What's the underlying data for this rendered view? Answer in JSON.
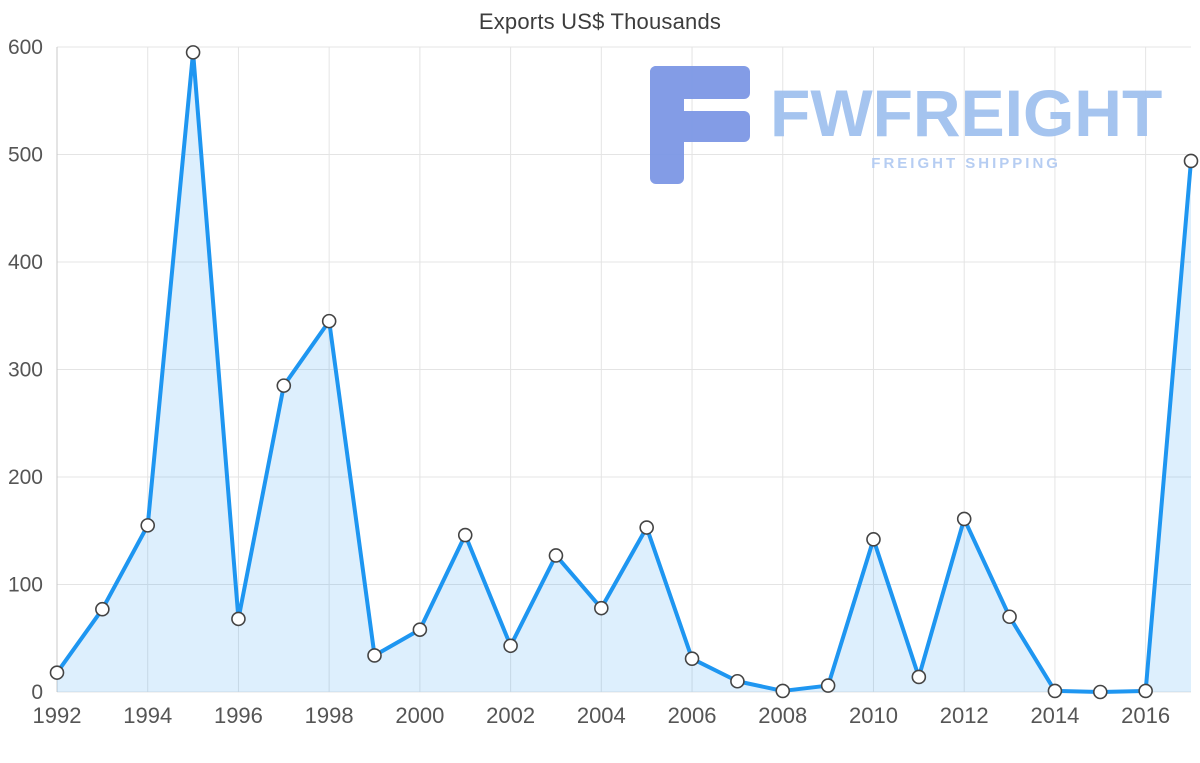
{
  "title": "Exports US$ Thousands",
  "watermark": {
    "brand": "FWFREIGHT",
    "tagline": "FREIGHT SHIPPING"
  },
  "chart_data": {
    "type": "area",
    "title": "Exports US$ Thousands",
    "xlabel": "",
    "ylabel": "",
    "x": [
      1992,
      1993,
      1994,
      1995,
      1996,
      1997,
      1998,
      1999,
      2000,
      2001,
      2002,
      2003,
      2004,
      2005,
      2006,
      2007,
      2008,
      2009,
      2010,
      2011,
      2012,
      2013,
      2014,
      2015,
      2016,
      2017
    ],
    "values": [
      18,
      77,
      155,
      595,
      68,
      285,
      345,
      34,
      58,
      146,
      43,
      127,
      78,
      153,
      31,
      10,
      1,
      6,
      142,
      14,
      161,
      70,
      1,
      0,
      1,
      494
    ],
    "ylim": [
      0,
      600
    ],
    "yticks": [
      0,
      100,
      200,
      300,
      400,
      500,
      600
    ],
    "xticks": [
      1992,
      1994,
      1996,
      1998,
      2000,
      2002,
      2004,
      2006,
      2008,
      2010,
      2012,
      2014,
      2016
    ],
    "grid": true,
    "legend": "none",
    "colors": {
      "line": "#1e96f1",
      "area": "rgba(30,150,241,0.15)",
      "marker_fill": "#ffffff",
      "marker_stroke": "#444444",
      "grid": "#e4e4e4",
      "axis_line": "#c9c9c9",
      "axis_text": "#555555",
      "title_text": "#3d3d3d",
      "logo": "#7e99e6"
    }
  }
}
